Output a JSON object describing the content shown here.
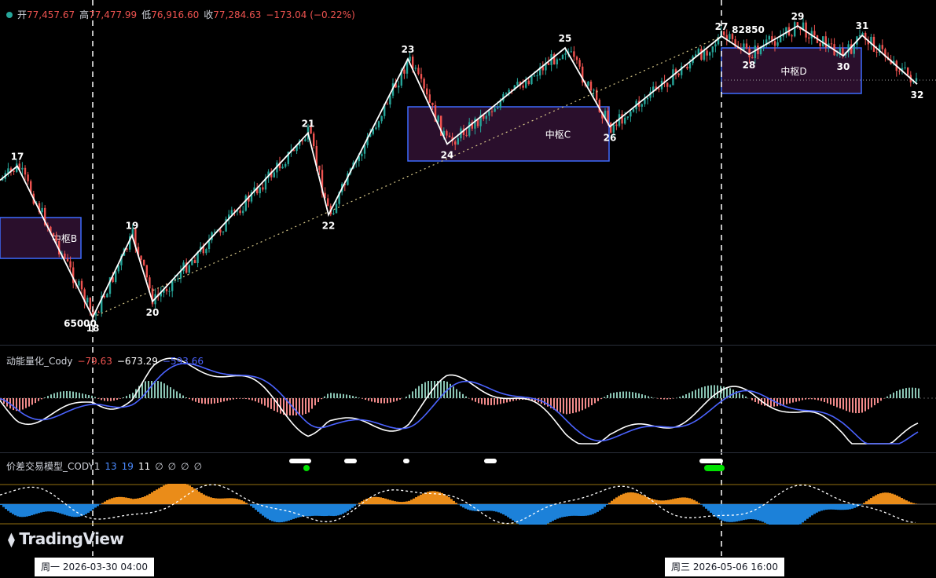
{
  "ohlc": {
    "open_label": "开",
    "open": "77,457.67",
    "high_label": "高",
    "high": "77,477.99",
    "low_label": "低",
    "low": "76,916.60",
    "close_label": "收",
    "close": "77,284.63",
    "change": "−173.04 (−0.22%)"
  },
  "indicator1": {
    "title": "动能量化_Cody",
    "v1": "−79.63",
    "v2": "−673.29",
    "v3": "−593.66"
  },
  "indicator2": {
    "title": "价差交易模型_CODY1",
    "v1": "13",
    "v2": "19",
    "v3": "11",
    "v4": "∅",
    "v5": "∅",
    "v6": "∅",
    "v7": "∅"
  },
  "logo": "TradingView",
  "time_labels": [
    "周一 2026-03-30   04:00",
    "周三 2026-05-06   16:00"
  ],
  "colors": {
    "up": "#26a69a",
    "down": "#ef5350",
    "stroke": "#ffffff",
    "zone_border": "#3d6bff",
    "zone_fill": "#2a0f2c",
    "macd_fast": "#ffffff",
    "macd_slow": "#4b63ff",
    "orange": "#f7931a",
    "blue": "#1e88e5"
  },
  "chart_data": {
    "type": "candlestick",
    "stroke_points": [
      {
        "label": "17",
        "price": 74600
      },
      {
        "label": "18",
        "extra_label": "65000",
        "price": 65000
      },
      {
        "label": "19",
        "price": 70200
      },
      {
        "label": "20",
        "price": 66000
      },
      {
        "label": "21",
        "price": 76700
      },
      {
        "label": "22",
        "price": 71500
      },
      {
        "label": "23",
        "price": 81400
      },
      {
        "label": "24",
        "price": 76000
      },
      {
        "label": "25",
        "price": 82100
      },
      {
        "label": "26",
        "price": 77100
      },
      {
        "label": "27",
        "extra_label": "82850",
        "price": 82850
      },
      {
        "label": "28",
        "price": 81700
      },
      {
        "label": "29",
        "price": 83500
      },
      {
        "label": "30",
        "price": 81600
      },
      {
        "label": "31",
        "price": 82900
      },
      {
        "label": "32",
        "price": 79800
      }
    ],
    "zones": [
      {
        "label": "中枢B",
        "start_point": "16",
        "end_point": "18"
      },
      {
        "label": "中枢C",
        "start_point": "23",
        "end_point": "26"
      },
      {
        "label": "中枢D",
        "start_point": "27",
        "end_point": "31"
      }
    ]
  }
}
